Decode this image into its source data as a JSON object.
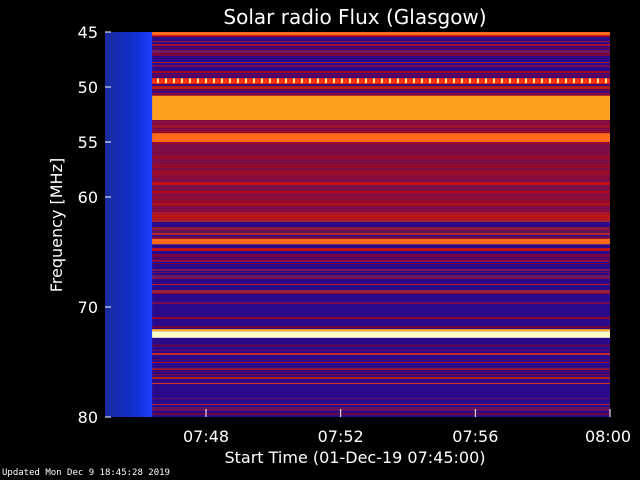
{
  "chart_data": {
    "type": "heatmap",
    "title": "Solar radio Flux (Glasgow)",
    "xlabel": "Start Time (01-Dec-19 07:45:00)",
    "ylabel": "Frequency [MHz]",
    "x_range": [
      "07:45:00",
      "08:00:00"
    ],
    "ylim": [
      45,
      80
    ],
    "y_inverted": true,
    "x_ticks": [
      {
        "label": "07:48",
        "minutes": 3
      },
      {
        "label": "07:52",
        "minutes": 7
      },
      {
        "label": "07:56",
        "minutes": 11
      },
      {
        "label": "08:00",
        "minutes": 15
      }
    ],
    "y_ticks": [
      45,
      50,
      55,
      60,
      70,
      80
    ],
    "y_tick_labels": [
      "45",
      "50",
      "55",
      "60",
      "70",
      "80"
    ],
    "data_gap_end_minutes": 1.4,
    "bright_bands_mhz": [
      {
        "from": 45.0,
        "to": 45.3,
        "level": "orange"
      },
      {
        "from": 49.2,
        "to": 49.7,
        "level": "dotted-yellow"
      },
      {
        "from": 50.8,
        "to": 53.0,
        "level": "orange-yellow"
      },
      {
        "from": 54.2,
        "to": 55.0,
        "level": "orange"
      },
      {
        "from": 63.8,
        "to": 64.3,
        "level": "orange"
      },
      {
        "from": 72.2,
        "to": 72.8,
        "level": "white-yellow"
      }
    ],
    "colors": {
      "background": "#000000",
      "low": "#2a0a8a",
      "gap": "#1020c0",
      "mid": "#c00000",
      "high": "#ff9a1a",
      "peak": "#ffffc0"
    }
  },
  "footer": {
    "updated": "Updated Mon Dec  9 18:45:28 2019"
  }
}
